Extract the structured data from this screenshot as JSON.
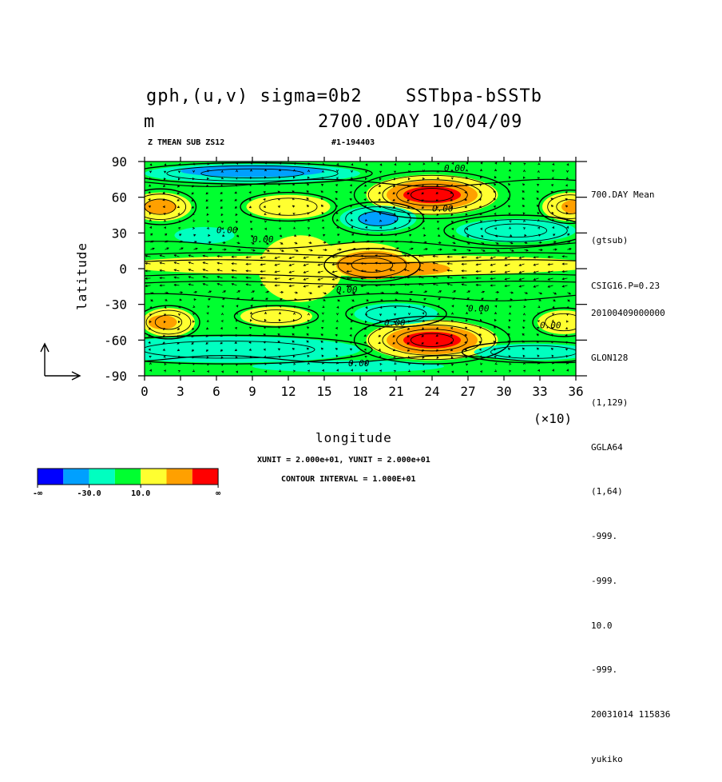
{
  "header": {
    "title_line1_left": "gph,(u,v) sigma=0b2",
    "title_line1_right": "SSTbpa-bSSTb",
    "title_line2_left": "m",
    "title_line2_right": "2700.0DAY 10/04/09",
    "sub_left": "Z TMEAN SUB ZS12",
    "sub_right": "#1-194403"
  },
  "side_info_top": [
    "700.DAY Mean",
    "(gtsub)",
    "CSIG16.P=0.23"
  ],
  "side_info_bottom": [
    "20100409000000",
    "GLON128",
    "(1,129)",
    "GGLA64",
    "(1,64)",
    "-999.",
    "-999.",
    "10.0",
    "-999.",
    "20031014 115836",
    "yukiko"
  ],
  "footer": {
    "vector_units": "XUNIT = 2.000e+01, YUNIT = 2.000e+01",
    "contour_interval": "CONTOUR INTERVAL = 1.000E+01"
  },
  "colorbar": {
    "colors": [
      "#0000ff",
      "#00a0ff",
      "#00ffc0",
      "#00ff30",
      "#ffff30",
      "#ffa000",
      "#ff0000"
    ],
    "labels": [
      "-∞",
      "-30.0",
      "10.0",
      "∞"
    ]
  },
  "chart_data": {
    "type": "heatmap",
    "xlabel": "longitude",
    "ylabel": "latitude",
    "x_multiplier": "(×10)",
    "xlim": [
      0,
      36
    ],
    "ylim": [
      -90,
      90
    ],
    "x_ticks": [
      0,
      3,
      6,
      9,
      12,
      15,
      18,
      21,
      24,
      27,
      30,
      33,
      36
    ],
    "y_ticks": [
      90,
      60,
      30,
      0,
      -30,
      -60,
      -90
    ],
    "contour_labels": [
      "0.00",
      "0.00",
      "0.00",
      "0.00",
      "0.00",
      "0.00",
      "0.00",
      "0.00",
      "0.00"
    ],
    "features": [
      {
        "lon": 24,
        "lat": 62,
        "value": 50
      },
      {
        "lon": 24,
        "lat": -60,
        "value": 50
      },
      {
        "lon": 19,
        "lat": 5,
        "value": 25
      },
      {
        "lon": 8,
        "lat": 80,
        "value": -40
      },
      {
        "lon": 19,
        "lat": 42,
        "value": -30
      },
      {
        "lon": 1,
        "lat": 52,
        "value": 20
      },
      {
        "lon": 1,
        "lat": -45,
        "value": 20
      }
    ]
  }
}
